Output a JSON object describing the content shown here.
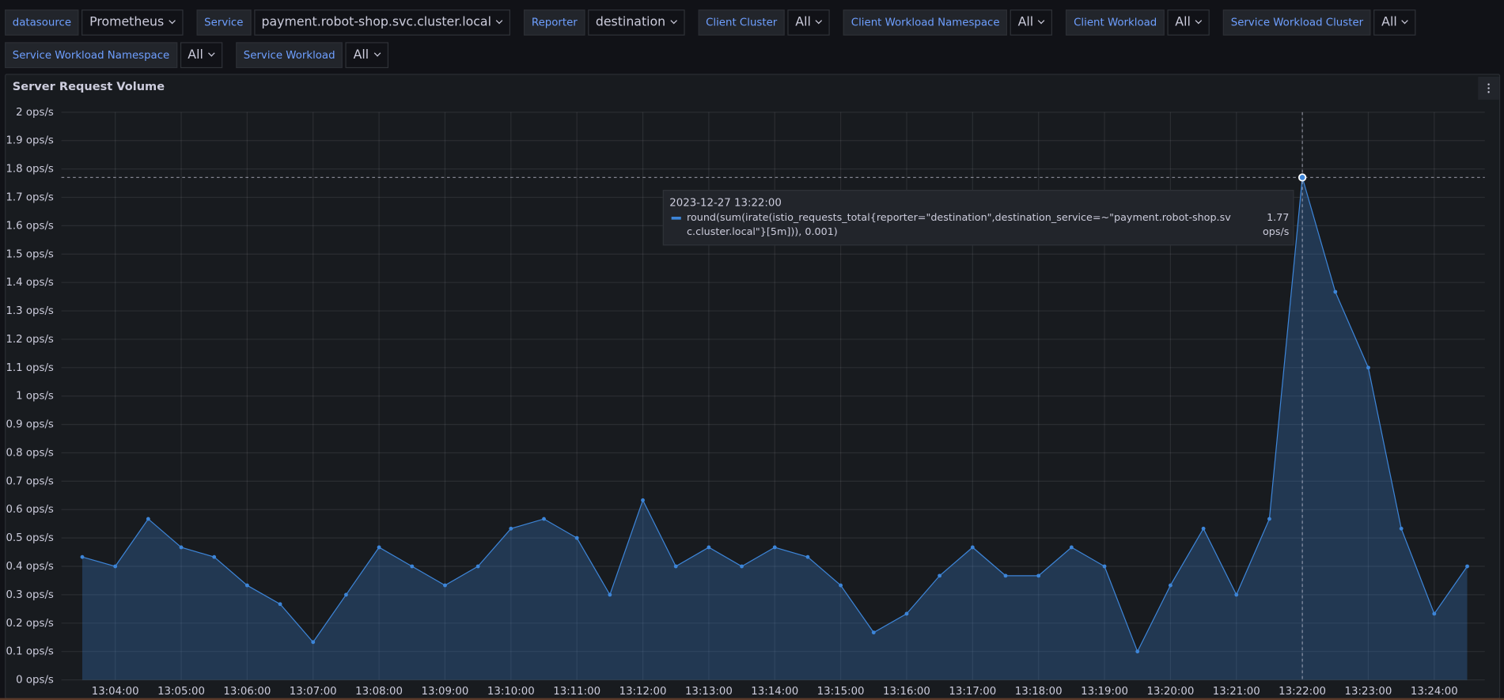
{
  "toolbar": {
    "variables": [
      {
        "label": "datasource",
        "value": "Prometheus"
      },
      {
        "label": "Service",
        "value": "payment.robot-shop.svc.cluster.local"
      },
      {
        "label": "Reporter",
        "value": "destination"
      },
      {
        "label": "Client Cluster",
        "value": "All"
      },
      {
        "label": "Client Workload Namespace",
        "value": "All"
      },
      {
        "label": "Client Workload",
        "value": "All"
      },
      {
        "label": "Service Workload Cluster",
        "value": "All"
      },
      {
        "label": "Service Workload Namespace",
        "value": "All"
      },
      {
        "label": "Service Workload",
        "value": "All"
      }
    ]
  },
  "chart_data": {
    "type": "area",
    "title": "Server Request Volume",
    "x": [
      "13:03:30",
      "13:04:00",
      "13:04:30",
      "13:05:00",
      "13:05:30",
      "13:06:00",
      "13:06:30",
      "13:07:00",
      "13:07:30",
      "13:08:00",
      "13:08:30",
      "13:09:00",
      "13:09:30",
      "13:10:00",
      "13:10:30",
      "13:11:00",
      "13:11:30",
      "13:12:00",
      "13:12:30",
      "13:13:00",
      "13:13:30",
      "13:14:00",
      "13:14:30",
      "13:15:00",
      "13:15:30",
      "13:16:00",
      "13:16:30",
      "13:17:00",
      "13:17:30",
      "13:18:00",
      "13:18:30",
      "13:19:00",
      "13:19:30",
      "13:20:00",
      "13:20:30",
      "13:21:00",
      "13:21:30",
      "13:22:00",
      "13:22:30",
      "13:23:00",
      "13:23:30",
      "13:24:00",
      "13:24:30"
    ],
    "series": [
      {
        "name": "round(sum(irate(istio_requests_total{reporter=\"destination\",destination_service=~\"payment.robot-shop.svc.cluster.local\"}[5m])), 0.001)",
        "color": "#3d85d8",
        "values": [
          0.433,
          0.4,
          0.567,
          0.467,
          0.433,
          0.333,
          0.267,
          0.133,
          0.3,
          0.467,
          0.4,
          0.333,
          0.4,
          0.533,
          0.567,
          0.5,
          0.3,
          0.633,
          0.4,
          0.467,
          0.4,
          0.467,
          0.433,
          0.333,
          0.167,
          0.233,
          0.367,
          0.467,
          0.367,
          0.367,
          0.467,
          0.4,
          0.1,
          0.333,
          0.533,
          0.3,
          0.567,
          1.77,
          1.367,
          1.1,
          0.533,
          0.233,
          0.4
        ]
      }
    ],
    "xlim": [
      "13:03:11",
      "13:24:46"
    ],
    "xticks": [
      "13:04:00",
      "13:05:00",
      "13:06:00",
      "13:07:00",
      "13:08:00",
      "13:09:00",
      "13:10:00",
      "13:11:00",
      "13:12:00",
      "13:13:00",
      "13:14:00",
      "13:15:00",
      "13:16:00",
      "13:17:00",
      "13:18:00",
      "13:19:00",
      "13:20:00",
      "13:21:00",
      "13:22:00",
      "13:23:00",
      "13:24:00"
    ],
    "ylim": [
      0,
      2
    ],
    "yticks": [
      {
        "value": 0,
        "label": "0 ops/s"
      },
      {
        "value": 0.1,
        "label": "0.1 ops/s"
      },
      {
        "value": 0.2,
        "label": "0.2 ops/s"
      },
      {
        "value": 0.3,
        "label": "0.3 ops/s"
      },
      {
        "value": 0.4,
        "label": "0.4 ops/s"
      },
      {
        "value": 0.5,
        "label": "0.5 ops/s"
      },
      {
        "value": 0.6,
        "label": "0.6 ops/s"
      },
      {
        "value": 0.7,
        "label": "0.7 ops/s"
      },
      {
        "value": 0.8,
        "label": "0.8 ops/s"
      },
      {
        "value": 0.9,
        "label": "0.9 ops/s"
      },
      {
        "value": 1,
        "label": "1 ops/s"
      },
      {
        "value": 1.1,
        "label": "1.1 ops/s"
      },
      {
        "value": 1.2,
        "label": "1.2 ops/s"
      },
      {
        "value": 1.3,
        "label": "1.3 ops/s"
      },
      {
        "value": 1.4,
        "label": "1.4 ops/s"
      },
      {
        "value": 1.5,
        "label": "1.5 ops/s"
      },
      {
        "value": 1.6,
        "label": "1.6 ops/s"
      },
      {
        "value": 1.7,
        "label": "1.7 ops/s"
      },
      {
        "value": 1.8,
        "label": "1.8 ops/s"
      },
      {
        "value": 1.9,
        "label": "1.9 ops/s"
      },
      {
        "value": 2,
        "label": "2 ops/s"
      }
    ],
    "grid": true,
    "tooltip": {
      "time": "2023-12-27 13:22:00",
      "value": "1.77 ops/s"
    }
  }
}
